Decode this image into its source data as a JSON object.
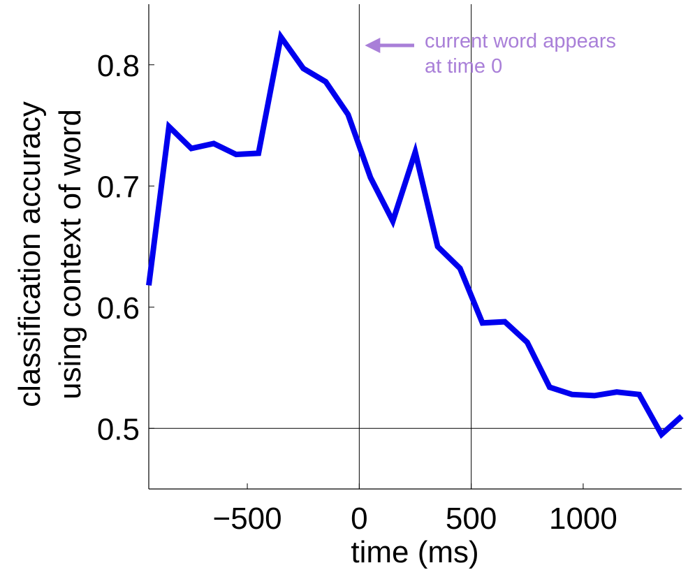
{
  "chart_data": {
    "type": "line",
    "title": "",
    "xlabel": "time (ms)",
    "ylabel": [
      "classification accuracy",
      "using context of word"
    ],
    "xlim": [
      -940,
      1440
    ],
    "ylim": [
      0.45,
      0.85
    ],
    "xticks": [
      -500,
      0,
      500,
      1000
    ],
    "xtick_labels": [
      "−500",
      "0",
      "500",
      "1000"
    ],
    "yticks": [
      0.5,
      0.6,
      0.7,
      0.8
    ],
    "ytick_labels": [
      "0.5",
      "0.6",
      "0.7",
      "0.8"
    ],
    "grid": false,
    "reference_lines": {
      "vertical": [
        0,
        500
      ],
      "horizontal": [
        0.5
      ]
    },
    "series": [
      {
        "color": "#0000ee",
        "x": [
          -940,
          -850,
          -750,
          -650,
          -550,
          -450,
          -350,
          -250,
          -150,
          -50,
          50,
          150,
          250,
          350,
          450,
          550,
          650,
          750,
          850,
          950,
          1050,
          1150,
          1250,
          1350,
          1440
        ],
        "y": [
          0.618,
          0.749,
          0.731,
          0.735,
          0.726,
          0.727,
          0.823,
          0.797,
          0.786,
          0.759,
          0.707,
          0.671,
          0.728,
          0.65,
          0.632,
          0.587,
          0.588,
          0.571,
          0.534,
          0.528,
          0.527,
          0.53,
          0.528,
          0.495,
          0.51
        ]
      }
    ],
    "annotations": [
      {
        "lines": [
          "current word appears",
          "at time 0"
        ],
        "color": "#a97fd8",
        "arrow_to_x": 0,
        "arrow_to_y": 0.816
      }
    ]
  }
}
